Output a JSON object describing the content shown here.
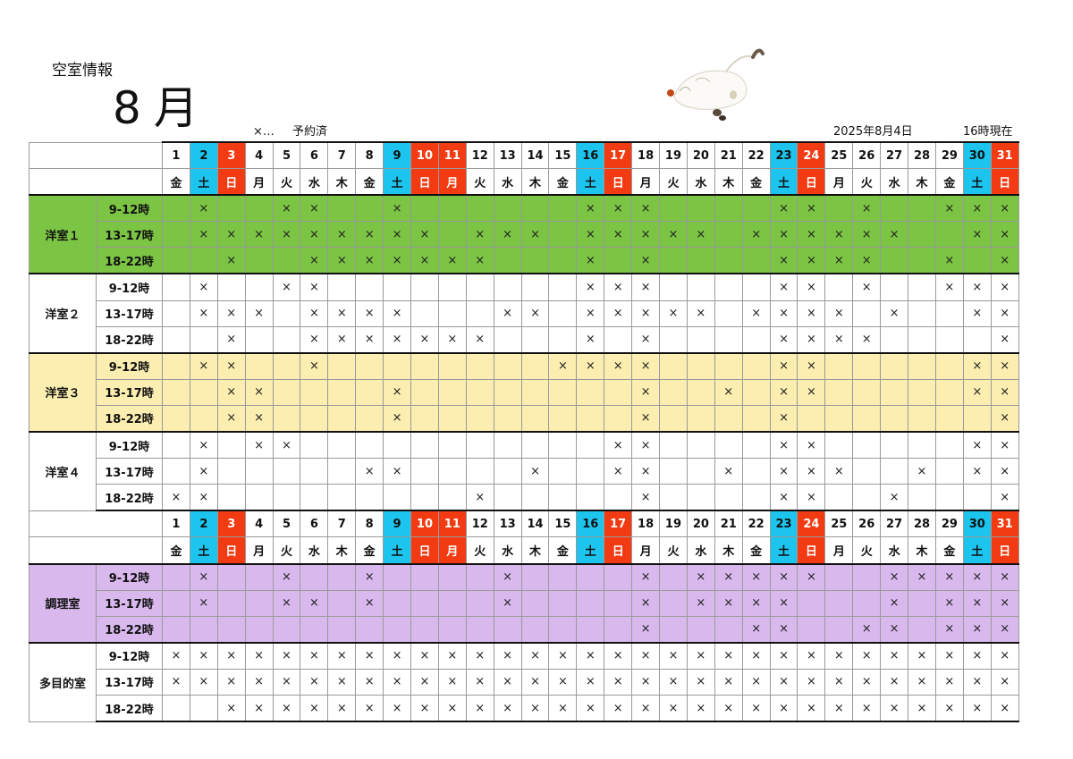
{
  "page_title": "空室情報",
  "month": "8月",
  "legend": {
    "symbol": "×…",
    "text": "予約済"
  },
  "date_label": "2025年8月4日",
  "time_label": "16時現在",
  "colors": {
    "saturday": "#1cc4ee",
    "sunday": "#f23b12",
    "youshitsu1": "#7cc444",
    "youshitsu3": "#fcedb0",
    "chouri": "#d9b8ee"
  },
  "days": [
    "1",
    "2",
    "3",
    "4",
    "5",
    "6",
    "7",
    "8",
    "9",
    "10",
    "11",
    "12",
    "13",
    "14",
    "15",
    "16",
    "17",
    "18",
    "19",
    "20",
    "21",
    "22",
    "23",
    "24",
    "25",
    "26",
    "27",
    "28",
    "29",
    "30",
    "31"
  ],
  "weekdays": [
    "金",
    "土",
    "日",
    "月",
    "火",
    "水",
    "木",
    "金",
    "土",
    "日",
    "月",
    "火",
    "水",
    "木",
    "金",
    "土",
    "日",
    "月",
    "火",
    "水",
    "木",
    "金",
    "土",
    "日",
    "月",
    "火",
    "水",
    "木",
    "金",
    "土",
    "日"
  ],
  "day_types": [
    "w",
    "sat",
    "sun",
    "w",
    "w",
    "w",
    "w",
    "w",
    "sat",
    "sun",
    "sun",
    "w",
    "w",
    "w",
    "w",
    "sat",
    "sun",
    "w",
    "w",
    "w",
    "w",
    "w",
    "sat",
    "sun",
    "w",
    "w",
    "w",
    "w",
    "w",
    "sat",
    "sun"
  ],
  "mark": "×",
  "rooms": [
    {
      "name": "洋室１",
      "color": "#7cc444",
      "slots": [
        {
          "label": "9-12時",
          "booked": [
            2,
            5,
            6,
            9,
            16,
            17,
            18,
            23,
            24,
            26,
            29,
            30,
            31
          ]
        },
        {
          "label": "13-17時",
          "booked": [
            2,
            3,
            4,
            5,
            6,
            7,
            8,
            9,
            10,
            12,
            13,
            14,
            16,
            17,
            18,
            19,
            20,
            22,
            23,
            24,
            25,
            26,
            27,
            30,
            31
          ]
        },
        {
          "label": "18-22時",
          "booked": [
            3,
            6,
            7,
            8,
            9,
            10,
            11,
            12,
            16,
            18,
            23,
            24,
            25,
            26,
            29,
            31
          ]
        }
      ]
    },
    {
      "name": "洋室２",
      "color": "#ffffff",
      "slots": [
        {
          "label": "9-12時",
          "booked": [
            2,
            5,
            6,
            16,
            17,
            18,
            23,
            24,
            26,
            29,
            30,
            31
          ]
        },
        {
          "label": "13-17時",
          "booked": [
            2,
            3,
            4,
            6,
            7,
            8,
            9,
            13,
            14,
            16,
            17,
            18,
            19,
            20,
            22,
            23,
            24,
            25,
            27,
            30,
            31
          ]
        },
        {
          "label": "18-22時",
          "booked": [
            3,
            6,
            7,
            8,
            9,
            10,
            11,
            12,
            16,
            18,
            23,
            24,
            25,
            26,
            31
          ]
        }
      ]
    },
    {
      "name": "洋室３",
      "color": "#fcedb0",
      "slots": [
        {
          "label": "9-12時",
          "booked": [
            2,
            3,
            6,
            15,
            16,
            17,
            18,
            23,
            24,
            30,
            31
          ]
        },
        {
          "label": "13-17時",
          "booked": [
            3,
            4,
            9,
            18,
            21,
            23,
            24,
            30,
            31
          ]
        },
        {
          "label": "18-22時",
          "booked": [
            3,
            4,
            9,
            18,
            23,
            31
          ]
        }
      ]
    },
    {
      "name": "洋室４",
      "color": "#ffffff",
      "slots": [
        {
          "label": "9-12時",
          "booked": [
            2,
            4,
            5,
            17,
            18,
            23,
            24,
            30,
            31
          ]
        },
        {
          "label": "13-17時",
          "booked": [
            2,
            8,
            9,
            14,
            17,
            18,
            21,
            23,
            24,
            25,
            28,
            30,
            31
          ]
        },
        {
          "label": "18-22時",
          "booked": [
            1,
            2,
            12,
            18,
            23,
            24,
            27,
            31
          ]
        }
      ]
    },
    {
      "name": "調理室",
      "color": "#d9b8ee",
      "header_before": true,
      "slots": [
        {
          "label": "9-12時",
          "booked": [
            2,
            5,
            8,
            13,
            18,
            20,
            21,
            22,
            23,
            24,
            27,
            28,
            29,
            30,
            31
          ]
        },
        {
          "label": "13-17時",
          "booked": [
            2,
            5,
            6,
            8,
            13,
            18,
            20,
            21,
            22,
            23,
            27,
            29,
            30,
            31
          ]
        },
        {
          "label": "18-22時",
          "booked": [
            18,
            22,
            23,
            26,
            27,
            29,
            30,
            31
          ]
        }
      ]
    },
    {
      "name": "多目的室",
      "color": "#ffffff",
      "slots": [
        {
          "label": "9-12時",
          "booked": [
            1,
            2,
            3,
            4,
            5,
            6,
            7,
            8,
            9,
            10,
            11,
            12,
            13,
            14,
            15,
            16,
            17,
            18,
            19,
            20,
            21,
            22,
            23,
            24,
            25,
            26,
            27,
            28,
            29,
            30,
            31
          ]
        },
        {
          "label": "13-17時",
          "booked": [
            1,
            2,
            3,
            4,
            5,
            6,
            7,
            8,
            9,
            10,
            11,
            12,
            13,
            14,
            15,
            16,
            17,
            18,
            19,
            20,
            21,
            22,
            23,
            24,
            25,
            26,
            27,
            28,
            29,
            30,
            31
          ]
        },
        {
          "label": "18-22時",
          "booked": [
            3,
            4,
            5,
            6,
            7,
            8,
            9,
            10,
            11,
            12,
            13,
            14,
            15,
            16,
            17,
            18,
            19,
            20,
            21,
            22,
            23,
            24,
            25,
            26,
            27,
            28,
            29,
            30,
            31
          ]
        }
      ]
    }
  ]
}
